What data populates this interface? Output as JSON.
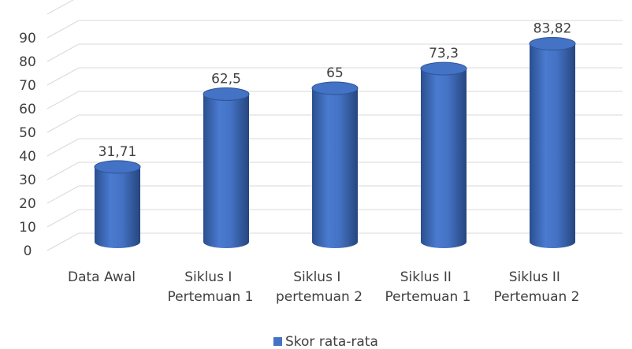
{
  "chart_data": {
    "type": "bar3d",
    "categories": [
      "Data Awal",
      "Siklus I Pertemuan 1",
      "Siklus I pertemuan 2",
      "Siklus II Pertemuan 1",
      "Siklus II Pertemuan 2"
    ],
    "series": [
      {
        "name": "Skor rata-rata",
        "color": "#4472c4",
        "values": [
          31.71,
          62.5,
          65,
          73.3,
          83.82
        ],
        "value_labels": [
          "31,71",
          "62,5",
          "65",
          "73,3",
          "83,82"
        ]
      }
    ],
    "ylim": [
      0,
      100
    ],
    "yticks": [
      0,
      10,
      20,
      30,
      40,
      50,
      60,
      70,
      80,
      90
    ],
    "grid": true,
    "legend": "bottom"
  }
}
